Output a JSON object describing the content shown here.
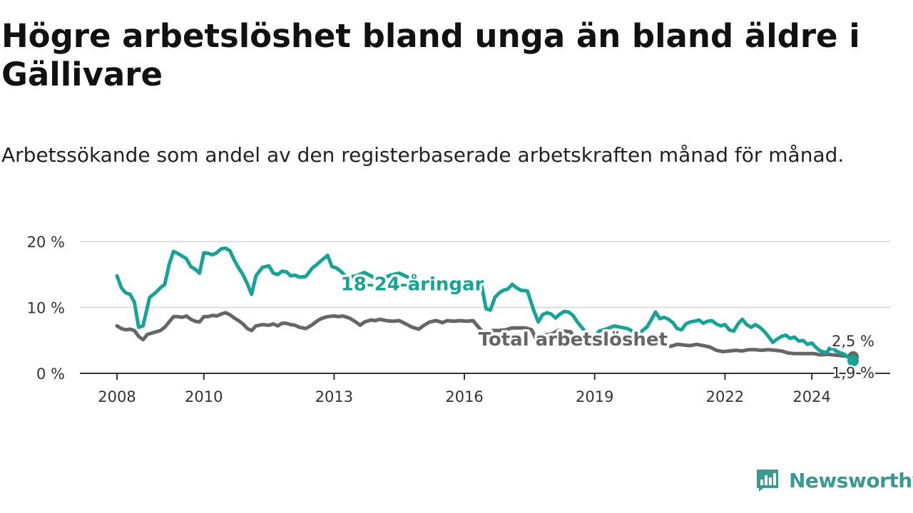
{
  "title": "Högre arbetslöshet bland unga än bland äldre i Gällivare",
  "subtitle": "Arbetssökande som andel av den registerbaserade arbetskraften månad för månad.",
  "brand": {
    "name": "Newsworthy",
    "icon": "newsworthy-logo-icon",
    "color": "#3a9a8f"
  },
  "chart_data": {
    "type": "line",
    "x_ticks": [
      "2008",
      "2010",
      "2013",
      "2016",
      "2019",
      "2022",
      "2024"
    ],
    "y_ticks": [
      "0 %",
      "10 %",
      "20 %"
    ],
    "ylim": [
      0,
      20
    ],
    "xlim": [
      2008.0,
      2024.95
    ],
    "grid": true,
    "series": [
      {
        "name": "18-24-åringar",
        "color": "#17a398",
        "end_label": "1,9 %",
        "points": [
          [
            2008.0,
            14.8
          ],
          [
            2008.1,
            13.0
          ],
          [
            2008.2,
            12.2
          ],
          [
            2008.3,
            12.0
          ],
          [
            2008.4,
            10.8
          ],
          [
            2008.5,
            7.0
          ],
          [
            2008.6,
            7.2
          ],
          [
            2008.75,
            11.5
          ],
          [
            2008.9,
            12.3
          ],
          [
            2009.0,
            13.0
          ],
          [
            2009.1,
            13.5
          ],
          [
            2009.2,
            16.5
          ],
          [
            2009.3,
            18.5
          ],
          [
            2009.4,
            18.2
          ],
          [
            2009.5,
            17.8
          ],
          [
            2009.6,
            17.4
          ],
          [
            2009.7,
            16.2
          ],
          [
            2009.8,
            15.8
          ],
          [
            2009.9,
            15.2
          ],
          [
            2010.0,
            18.3
          ],
          [
            2010.1,
            18.2
          ],
          [
            2010.2,
            18.0
          ],
          [
            2010.3,
            18.3
          ],
          [
            2010.4,
            18.9
          ],
          [
            2010.5,
            19.0
          ],
          [
            2010.6,
            18.6
          ],
          [
            2010.7,
            17.2
          ],
          [
            2010.8,
            16.0
          ],
          [
            2010.9,
            15.0
          ],
          [
            2011.0,
            13.6
          ],
          [
            2011.1,
            12.0
          ],
          [
            2011.2,
            14.8
          ],
          [
            2011.35,
            16.1
          ],
          [
            2011.5,
            16.3
          ],
          [
            2011.6,
            15.2
          ],
          [
            2011.7,
            15.0
          ],
          [
            2011.8,
            15.5
          ],
          [
            2011.9,
            15.4
          ],
          [
            2012.0,
            14.8
          ],
          [
            2012.1,
            14.9
          ],
          [
            2012.2,
            14.6
          ],
          [
            2012.35,
            14.7
          ],
          [
            2012.5,
            16.0
          ],
          [
            2012.6,
            16.5
          ],
          [
            2012.7,
            17.1
          ],
          [
            2012.85,
            17.9
          ],
          [
            2012.95,
            16.2
          ],
          [
            2013.05,
            16.0
          ],
          [
            2013.15,
            15.5
          ],
          [
            2013.3,
            14.5
          ],
          [
            2013.5,
            14.8
          ],
          [
            2013.7,
            15.3
          ],
          [
            2013.9,
            14.6
          ],
          [
            2014.1,
            14.3
          ],
          [
            2014.3,
            14.9
          ],
          [
            2014.5,
            15.2
          ],
          [
            2014.7,
            14.6
          ],
          [
            2014.9,
            14.0
          ],
          [
            2015.1,
            14.1
          ],
          [
            2015.3,
            13.9
          ],
          [
            2015.5,
            13.7
          ],
          [
            2015.7,
            13.5
          ],
          [
            2015.9,
            13.4
          ],
          [
            2016.1,
            13.6
          ],
          [
            2016.25,
            13.8
          ],
          [
            2016.4,
            13.2
          ],
          [
            2016.5,
            9.8
          ],
          [
            2016.6,
            9.6
          ],
          [
            2016.7,
            11.5
          ],
          [
            2016.8,
            12.2
          ],
          [
            2016.9,
            12.6
          ],
          [
            2017.0,
            12.8
          ],
          [
            2017.1,
            13.5
          ],
          [
            2017.2,
            13.0
          ],
          [
            2017.3,
            12.6
          ],
          [
            2017.45,
            12.5
          ],
          [
            2017.6,
            9.5
          ],
          [
            2017.7,
            7.8
          ],
          [
            2017.8,
            8.9
          ],
          [
            2017.9,
            9.2
          ],
          [
            2018.0,
            9.0
          ],
          [
            2018.1,
            8.4
          ],
          [
            2018.2,
            9.0
          ],
          [
            2018.3,
            9.4
          ],
          [
            2018.4,
            9.3
          ],
          [
            2018.5,
            8.8
          ],
          [
            2018.6,
            7.8
          ],
          [
            2018.7,
            7.0
          ],
          [
            2018.8,
            6.2
          ],
          [
            2018.9,
            5.8
          ],
          [
            2019.0,
            5.5
          ],
          [
            2019.1,
            6.4
          ],
          [
            2019.2,
            6.6
          ],
          [
            2019.3,
            6.8
          ],
          [
            2019.45,
            7.2
          ],
          [
            2019.6,
            7.0
          ],
          [
            2019.75,
            6.8
          ],
          [
            2019.9,
            6.3
          ],
          [
            2020.0,
            5.8
          ],
          [
            2020.1,
            6.5
          ],
          [
            2020.2,
            7.0
          ],
          [
            2020.3,
            8.1
          ],
          [
            2020.4,
            9.3
          ],
          [
            2020.5,
            8.3
          ],
          [
            2020.6,
            8.5
          ],
          [
            2020.7,
            8.2
          ],
          [
            2020.8,
            7.7
          ],
          [
            2020.9,
            6.8
          ],
          [
            2021.0,
            6.6
          ],
          [
            2021.1,
            7.5
          ],
          [
            2021.2,
            7.8
          ],
          [
            2021.3,
            7.9
          ],
          [
            2021.4,
            8.1
          ],
          [
            2021.5,
            7.6
          ],
          [
            2021.6,
            7.9
          ],
          [
            2021.7,
            8.0
          ],
          [
            2021.8,
            7.5
          ],
          [
            2021.9,
            7.2
          ],
          [
            2022.0,
            7.4
          ],
          [
            2022.1,
            6.6
          ],
          [
            2022.2,
            6.4
          ],
          [
            2022.3,
            7.5
          ],
          [
            2022.4,
            8.2
          ],
          [
            2022.5,
            7.4
          ],
          [
            2022.6,
            7.0
          ],
          [
            2022.7,
            7.4
          ],
          [
            2022.8,
            7.0
          ],
          [
            2022.9,
            6.4
          ],
          [
            2023.0,
            5.6
          ],
          [
            2023.1,
            4.7
          ],
          [
            2023.2,
            5.2
          ],
          [
            2023.3,
            5.6
          ],
          [
            2023.4,
            5.8
          ],
          [
            2023.5,
            5.3
          ],
          [
            2023.6,
            5.5
          ],
          [
            2023.7,
            4.9
          ],
          [
            2023.8,
            5.0
          ],
          [
            2023.9,
            4.4
          ],
          [
            2024.0,
            4.6
          ],
          [
            2024.1,
            3.9
          ],
          [
            2024.2,
            3.4
          ],
          [
            2024.3,
            3.2
          ],
          [
            2024.35,
            3.1
          ],
          [
            2024.4,
            3.8
          ],
          [
            2024.45,
            3.7
          ],
          [
            2024.5,
            3.9
          ],
          [
            2024.55,
            3.4
          ],
          [
            2024.6,
            3.3
          ],
          [
            2024.65,
            3.1
          ],
          [
            2024.7,
            3.0
          ],
          [
            2024.75,
            2.9
          ],
          [
            2024.8,
            2.6
          ],
          [
            2024.85,
            2.4
          ],
          [
            2024.88,
            2.1
          ],
          [
            2024.92,
            1.9
          ],
          [
            2024.95,
            1.9
          ]
        ]
      },
      {
        "name": "Total arbetslöshet",
        "color": "#666666",
        "end_label": "2,5 %",
        "points": [
          [
            2008.0,
            7.2
          ],
          [
            2008.1,
            6.8
          ],
          [
            2008.2,
            6.6
          ],
          [
            2008.3,
            6.7
          ],
          [
            2008.4,
            6.5
          ],
          [
            2008.5,
            5.6
          ],
          [
            2008.6,
            5.1
          ],
          [
            2008.7,
            5.9
          ],
          [
            2008.85,
            6.2
          ],
          [
            2009.0,
            6.5
          ],
          [
            2009.1,
            7.0
          ],
          [
            2009.2,
            7.8
          ],
          [
            2009.3,
            8.6
          ],
          [
            2009.4,
            8.6
          ],
          [
            2009.5,
            8.5
          ],
          [
            2009.6,
            8.7
          ],
          [
            2009.7,
            8.2
          ],
          [
            2009.8,
            7.9
          ],
          [
            2009.9,
            7.8
          ],
          [
            2010.0,
            8.6
          ],
          [
            2010.1,
            8.6
          ],
          [
            2010.2,
            8.8
          ],
          [
            2010.3,
            8.7
          ],
          [
            2010.4,
            9.0
          ],
          [
            2010.5,
            9.2
          ],
          [
            2010.6,
            8.9
          ],
          [
            2010.7,
            8.4
          ],
          [
            2010.8,
            8.0
          ],
          [
            2010.9,
            7.5
          ],
          [
            2011.0,
            6.8
          ],
          [
            2011.1,
            6.5
          ],
          [
            2011.2,
            7.2
          ],
          [
            2011.35,
            7.4
          ],
          [
            2011.5,
            7.3
          ],
          [
            2011.6,
            7.5
          ],
          [
            2011.7,
            7.2
          ],
          [
            2011.8,
            7.6
          ],
          [
            2011.9,
            7.6
          ],
          [
            2012.0,
            7.4
          ],
          [
            2012.1,
            7.3
          ],
          [
            2012.2,
            7.0
          ],
          [
            2012.35,
            6.8
          ],
          [
            2012.5,
            7.4
          ],
          [
            2012.6,
            7.9
          ],
          [
            2012.7,
            8.3
          ],
          [
            2012.85,
            8.6
          ],
          [
            2013.0,
            8.7
          ],
          [
            2013.1,
            8.6
          ],
          [
            2013.2,
            8.7
          ],
          [
            2013.35,
            8.4
          ],
          [
            2013.5,
            7.8
          ],
          [
            2013.6,
            7.3
          ],
          [
            2013.7,
            7.8
          ],
          [
            2013.85,
            8.1
          ],
          [
            2013.95,
            8.0
          ],
          [
            2014.05,
            8.2
          ],
          [
            2014.2,
            8.0
          ],
          [
            2014.35,
            7.9
          ],
          [
            2014.5,
            8.0
          ],
          [
            2014.65,
            7.5
          ],
          [
            2014.8,
            7.0
          ],
          [
            2014.95,
            6.7
          ],
          [
            2015.05,
            7.2
          ],
          [
            2015.2,
            7.8
          ],
          [
            2015.35,
            8.0
          ],
          [
            2015.5,
            7.7
          ],
          [
            2015.6,
            8.0
          ],
          [
            2015.75,
            7.9
          ],
          [
            2015.9,
            8.0
          ],
          [
            2016.05,
            7.9
          ],
          [
            2016.2,
            8.0
          ],
          [
            2016.35,
            6.8
          ],
          [
            2016.5,
            5.9
          ],
          [
            2016.65,
            6.5
          ],
          [
            2016.8,
            6.5
          ],
          [
            2016.95,
            6.6
          ],
          [
            2017.1,
            6.9
          ],
          [
            2017.25,
            6.9
          ],
          [
            2017.4,
            6.9
          ],
          [
            2017.55,
            6.6
          ],
          [
            2017.65,
            5.2
          ],
          [
            2017.75,
            5.1
          ],
          [
            2017.85,
            5.8
          ],
          [
            2017.95,
            5.9
          ],
          [
            2018.05,
            6.1
          ],
          [
            2018.15,
            6.5
          ],
          [
            2018.3,
            6.4
          ],
          [
            2018.45,
            6.3
          ],
          [
            2018.55,
            5.2
          ],
          [
            2018.65,
            4.5
          ],
          [
            2018.75,
            4.6
          ],
          [
            2018.85,
            5.0
          ],
          [
            2018.95,
            5.4
          ],
          [
            2019.05,
            5.6
          ],
          [
            2019.15,
            4.9
          ],
          [
            2019.25,
            4.6
          ],
          [
            2019.4,
            4.9
          ],
          [
            2019.55,
            4.5
          ],
          [
            2019.7,
            4.4
          ],
          [
            2019.85,
            4.3
          ],
          [
            2020.0,
            4.5
          ],
          [
            2020.15,
            4.4
          ],
          [
            2020.3,
            4.7
          ],
          [
            2020.45,
            4.5
          ],
          [
            2020.6,
            4.3
          ],
          [
            2020.75,
            4.1
          ],
          [
            2020.9,
            4.4
          ],
          [
            2021.05,
            4.3
          ],
          [
            2021.2,
            4.2
          ],
          [
            2021.35,
            4.4
          ],
          [
            2021.5,
            4.2
          ],
          [
            2021.65,
            4.0
          ],
          [
            2021.8,
            3.5
          ],
          [
            2021.95,
            3.3
          ],
          [
            2022.1,
            3.4
          ],
          [
            2022.25,
            3.5
          ],
          [
            2022.4,
            3.4
          ],
          [
            2022.55,
            3.6
          ],
          [
            2022.7,
            3.6
          ],
          [
            2022.85,
            3.5
          ],
          [
            2023.0,
            3.6
          ],
          [
            2023.15,
            3.5
          ],
          [
            2023.3,
            3.4
          ],
          [
            2023.45,
            3.1
          ],
          [
            2023.6,
            3.0
          ],
          [
            2023.75,
            3.0
          ],
          [
            2023.9,
            3.0
          ],
          [
            2024.05,
            3.0
          ],
          [
            2024.2,
            2.8
          ],
          [
            2024.35,
            2.9
          ],
          [
            2024.5,
            2.8
          ],
          [
            2024.65,
            2.7
          ],
          [
            2024.8,
            2.6
          ],
          [
            2024.9,
            2.5
          ],
          [
            2024.95,
            2.5
          ]
        ]
      }
    ],
    "annotations": [
      {
        "text": "18-24-åringar",
        "series": "18-24-åringar",
        "at_x": 2014.8,
        "at_y": 12.6
      },
      {
        "text": "Total arbetslöshet",
        "series": "Total arbetslöshet",
        "at_x": 2018.5,
        "at_y": 4.2
      }
    ]
  }
}
